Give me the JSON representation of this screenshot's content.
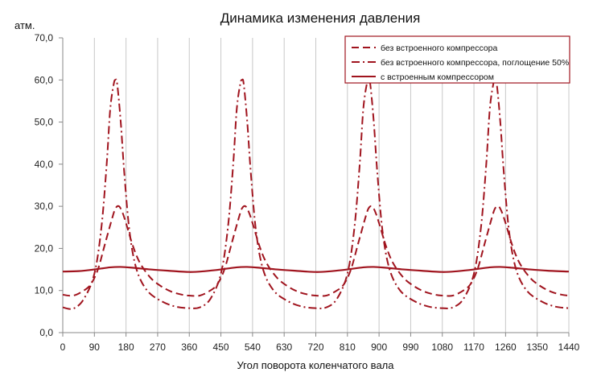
{
  "chart_data": {
    "type": "line",
    "title": "Динамика изменения давления",
    "xlabel": "Угол поворота коленчатого вала",
    "ylabel": "атм.",
    "xlim": [
      0,
      1440
    ],
    "ylim": [
      0,
      70
    ],
    "x_ticks": [
      "0",
      "90",
      "180",
      "270",
      "360",
      "450",
      "540",
      "630",
      "720",
      "810",
      "900",
      "990",
      "1080",
      "1170",
      "1260",
      "1350",
      "1440"
    ],
    "y_ticks": [
      "0,0",
      "10,0",
      "20,0",
      "30,0",
      "40,0",
      "50,0",
      "60,0",
      "70,0"
    ],
    "grid": "vertical",
    "legend_position": "top-right",
    "colors": {
      "series": "#a0141e",
      "grid": "#c8c8c8",
      "axis": "#888888",
      "legend_border": "#a0141e"
    },
    "series": [
      {
        "name": "без встроенного компрессора",
        "dash": "dash",
        "x": [
          0,
          30,
          60,
          80,
          100,
          120,
          140,
          150,
          160,
          170,
          180,
          200,
          220,
          250,
          280,
          310,
          340,
          360,
          390,
          420,
          440,
          460,
          480,
          500,
          510,
          520,
          530,
          540,
          560,
          580,
          610,
          640,
          670,
          700,
          720,
          750,
          780,
          800,
          820,
          840,
          860,
          870,
          880,
          890,
          900,
          920,
          940,
          970,
          1000,
          1030,
          1060,
          1080,
          1110,
          1140,
          1160,
          1180,
          1200,
          1220,
          1230,
          1240,
          1250,
          1260,
          1280,
          1300,
          1330,
          1360,
          1390,
          1420,
          1440
        ],
        "y": [
          9,
          8.8,
          10,
          11.5,
          15,
          21,
          27,
          29.5,
          30,
          28.5,
          26,
          20.5,
          16.5,
          13,
          11,
          9.7,
          9,
          8.8,
          8.8,
          10,
          11.5,
          15,
          21,
          27,
          29.5,
          30,
          28.5,
          26,
          20.5,
          16.5,
          13,
          11,
          9.7,
          9,
          8.8,
          8.8,
          10,
          11.5,
          15,
          21,
          27,
          29.5,
          30,
          28.5,
          26,
          20.5,
          16.5,
          13,
          11,
          9.7,
          9,
          8.8,
          8.8,
          10,
          11.5,
          15,
          21,
          27,
          29.5,
          30,
          28.5,
          26,
          20.5,
          16.5,
          13,
          11,
          9.7,
          9,
          8.8
        ]
      },
      {
        "name": "без встроенного компрессора, поглощение 50%",
        "dash": "dashdot",
        "x": [
          0,
          30,
          60,
          90,
          110,
          125,
          135,
          145,
          150,
          155,
          165,
          175,
          190,
          210,
          240,
          280,
          320,
          360,
          390,
          420,
          450,
          470,
          485,
          495,
          505,
          510,
          515,
          525,
          535,
          550,
          570,
          600,
          640,
          680,
          720,
          750,
          780,
          810,
          830,
          845,
          855,
          865,
          870,
          875,
          885,
          895,
          910,
          930,
          960,
          1000,
          1040,
          1080,
          1110,
          1140,
          1170,
          1190,
          1205,
          1215,
          1225,
          1230,
          1235,
          1245,
          1255,
          1270,
          1290,
          1320,
          1360,
          1400,
          1440
        ],
        "y": [
          6,
          5.7,
          8,
          14,
          25,
          40,
          53,
          59,
          60,
          59,
          50,
          38,
          24,
          15,
          10,
          7.5,
          6.2,
          5.8,
          6,
          8,
          14,
          25,
          40,
          53,
          59,
          60,
          59,
          50,
          38,
          24,
          15,
          10,
          7.5,
          6.2,
          5.8,
          6,
          8,
          14,
          25,
          40,
          53,
          59,
          60,
          59,
          50,
          38,
          24,
          15,
          10,
          7.5,
          6.2,
          5.8,
          6,
          8,
          14,
          25,
          40,
          53,
          59,
          60,
          59,
          50,
          38,
          24,
          15,
          10,
          7.5,
          6.2,
          5.8
        ]
      },
      {
        "name": "с встроенным компрессором",
        "dash": "solid",
        "x": [
          0,
          45,
          90,
          135,
          165,
          200,
          250,
          300,
          360,
          405,
          450,
          495,
          525,
          560,
          610,
          660,
          720,
          765,
          810,
          855,
          885,
          920,
          970,
          1020,
          1080,
          1125,
          1170,
          1215,
          1245,
          1280,
          1330,
          1380,
          1440
        ],
        "y": [
          14.5,
          14.6,
          15,
          15.5,
          15.6,
          15.4,
          15,
          14.7,
          14.4,
          14.6,
          15,
          15.5,
          15.6,
          15.4,
          15,
          14.7,
          14.4,
          14.6,
          15,
          15.5,
          15.6,
          15.4,
          15,
          14.7,
          14.4,
          14.6,
          15,
          15.5,
          15.6,
          15.4,
          15,
          14.7,
          14.5
        ]
      }
    ]
  }
}
